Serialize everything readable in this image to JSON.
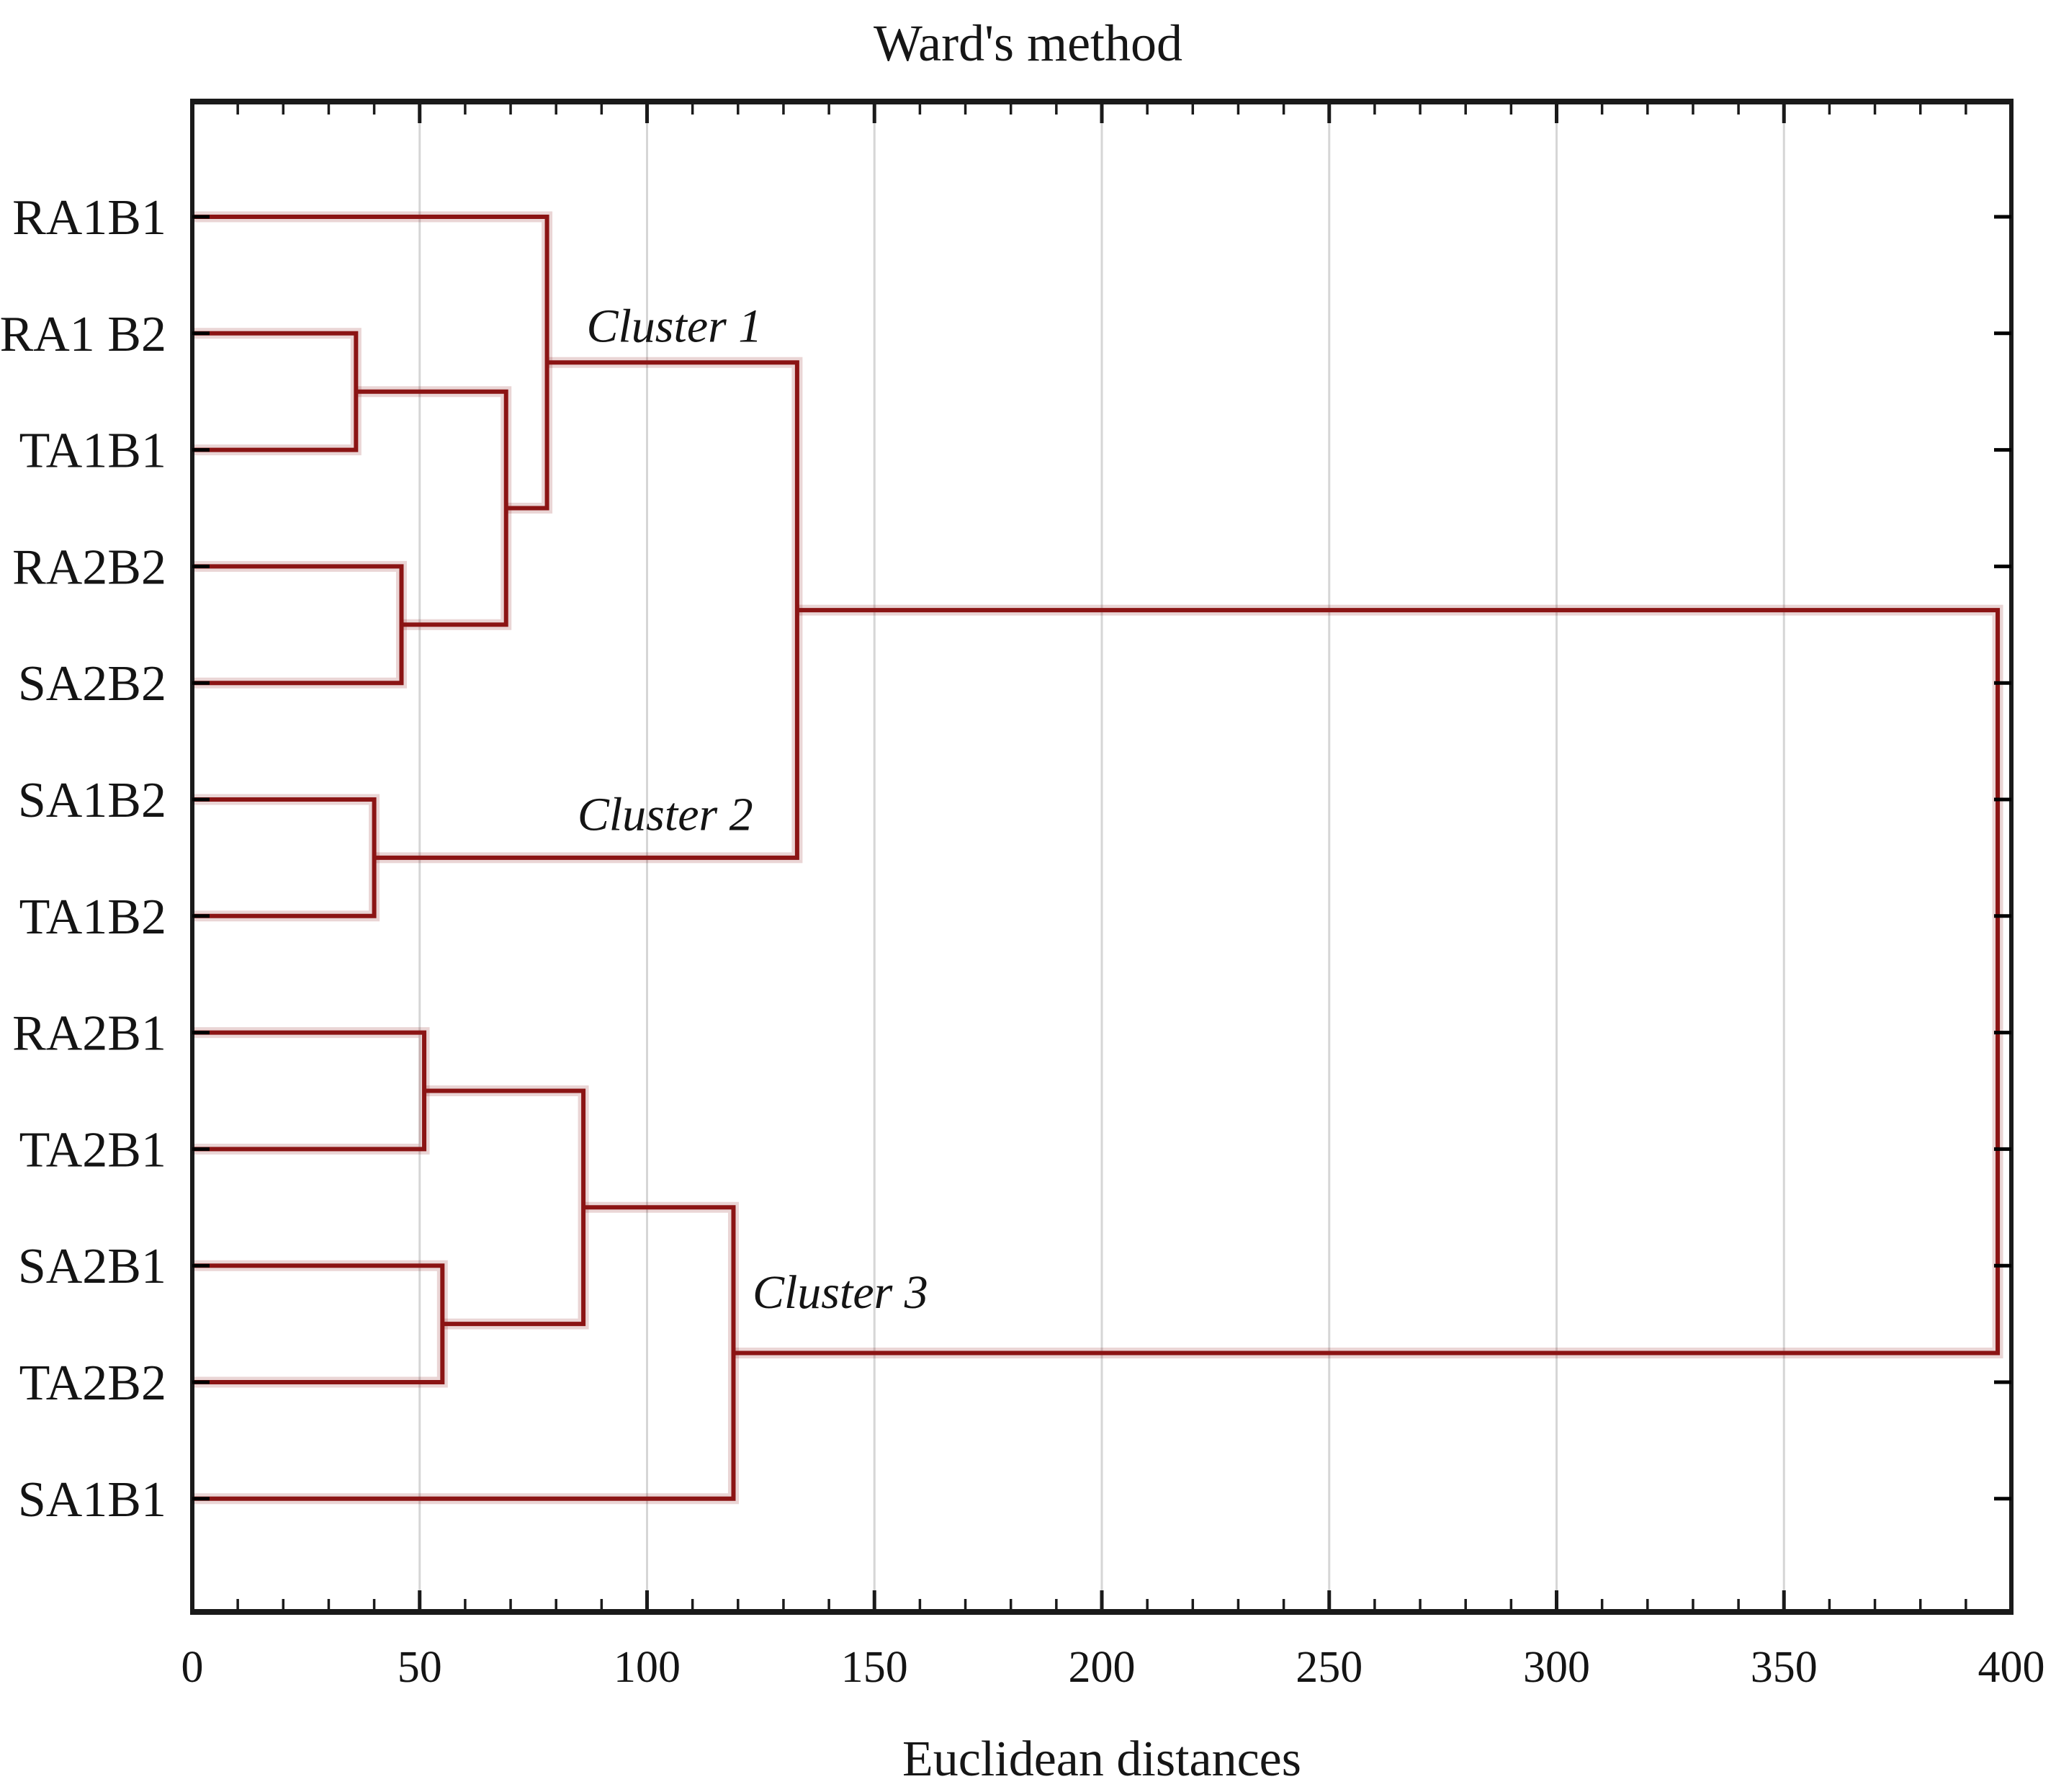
{
  "title": "Ward's method",
  "xlabel": "Euclidean distances",
  "chart_data": {
    "type": "dendrogram",
    "title": "Ward's method",
    "xlabel": "Euclidean distances",
    "orientation": "horizontal, leaves on left",
    "xlim": [
      0,
      400
    ],
    "xticks": [
      0,
      50,
      100,
      150,
      200,
      250,
      300,
      350,
      400
    ],
    "minor_tick_step": 10,
    "grid": "vertical gridlines at major ticks",
    "leaves": [
      "RA1B1",
      "RA1 B2",
      "TA1B1",
      "RA2B2",
      "SA2B2",
      "SA1B2",
      "TA1B2",
      "RA2B1",
      "TA2B1",
      "SA2B1",
      "TA2B2",
      "SA1B1"
    ],
    "merges": [
      {
        "a": "RA1 B2",
        "b": "TA1B1",
        "distance": 36
      },
      {
        "a": "RA2B2",
        "b": "SA2B2",
        "distance": 46
      },
      {
        "a": "#0",
        "b": "#1",
        "distance": 69
      },
      {
        "a": "RA1B1",
        "b": "#2",
        "distance": 78
      },
      {
        "a": "SA1B2",
        "b": "TA1B2",
        "distance": 40
      },
      {
        "a": "#3",
        "b": "#4",
        "distance": 133
      },
      {
        "a": "RA2B1",
        "b": "TA2B1",
        "distance": 51
      },
      {
        "a": "SA2B1",
        "b": "TA2B2",
        "distance": 55
      },
      {
        "a": "#6",
        "b": "#7",
        "distance": 86
      },
      {
        "a": "#8",
        "b": "SA1B1",
        "distance": 119
      },
      {
        "a": "#5",
        "b": "#9",
        "distance": 397
      }
    ],
    "annotations": [
      {
        "text": "Cluster 1",
        "x": 106,
        "row": 0.93
      },
      {
        "text": "Cluster 2",
        "x": 104,
        "row": 5.12
      },
      {
        "text": "Cluster 3",
        "x": 142.5,
        "row": 9.22
      }
    ],
    "colors": {
      "link": "#8B1414",
      "grid": "#D6D6D6",
      "axis": "#1A1A1A",
      "text": "#141414"
    }
  }
}
